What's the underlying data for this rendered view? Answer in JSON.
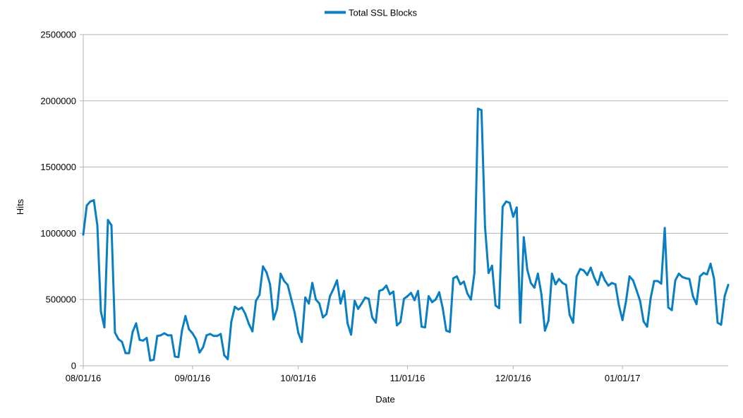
{
  "chart_data": {
    "type": "line",
    "xlabel": "Date",
    "ylabel": "Hits",
    "ylim": [
      0,
      2500000
    ],
    "y_ticks": [
      "0",
      "500000",
      "1000000",
      "1500000",
      "2000000",
      "2500000"
    ],
    "x_ticks": [
      "08/01/16",
      "09/01/16",
      "10/01/16",
      "11/01/16",
      "12/01/16",
      "01/01/17"
    ],
    "x_tick_dates": [
      "2016-08-01",
      "2016-09-01",
      "2016-10-01",
      "2016-11-01",
      "2016-12-01",
      "2017-01-01"
    ],
    "xlim": [
      "2016-08-01",
      "2017-01-31"
    ],
    "grid": "horizontal",
    "legend_position": "top-center",
    "series": [
      {
        "name": "Total SSL Blocks",
        "color": "#0a7ec2",
        "x": [
          "2016-08-01",
          "2016-08-02",
          "2016-08-03",
          "2016-08-04",
          "2016-08-05",
          "2016-08-06",
          "2016-08-07",
          "2016-08-08",
          "2016-08-09",
          "2016-08-10",
          "2016-08-11",
          "2016-08-12",
          "2016-08-13",
          "2016-08-14",
          "2016-08-15",
          "2016-08-16",
          "2016-08-17",
          "2016-08-18",
          "2016-08-19",
          "2016-08-20",
          "2016-08-21",
          "2016-08-22",
          "2016-08-23",
          "2016-08-24",
          "2016-08-25",
          "2016-08-26",
          "2016-08-27",
          "2016-08-28",
          "2016-08-29",
          "2016-08-30",
          "2016-08-31",
          "2016-09-01",
          "2016-09-02",
          "2016-09-03",
          "2016-09-04",
          "2016-09-05",
          "2016-09-06",
          "2016-09-07",
          "2016-09-08",
          "2016-09-09",
          "2016-09-10",
          "2016-09-11",
          "2016-09-12",
          "2016-09-13",
          "2016-09-14",
          "2016-09-15",
          "2016-09-16",
          "2016-09-17",
          "2016-09-18",
          "2016-09-19",
          "2016-09-20",
          "2016-09-21",
          "2016-09-22",
          "2016-09-23",
          "2016-09-24",
          "2016-09-25",
          "2016-09-26",
          "2016-09-27",
          "2016-09-28",
          "2016-09-29",
          "2016-09-30",
          "2016-10-01",
          "2016-10-02",
          "2016-10-03",
          "2016-10-04",
          "2016-10-05",
          "2016-10-06",
          "2016-10-07",
          "2016-10-08",
          "2016-10-09",
          "2016-10-10",
          "2016-10-11",
          "2016-10-12",
          "2016-10-13",
          "2016-10-14",
          "2016-10-15",
          "2016-10-16",
          "2016-10-17",
          "2016-10-18",
          "2016-10-19",
          "2016-10-20",
          "2016-10-21",
          "2016-10-22",
          "2016-10-23",
          "2016-10-24",
          "2016-10-25",
          "2016-10-26",
          "2016-10-27",
          "2016-10-28",
          "2016-10-29",
          "2016-10-30",
          "2016-10-31",
          "2016-11-01",
          "2016-11-02",
          "2016-11-03",
          "2016-11-04",
          "2016-11-05",
          "2016-11-06",
          "2016-11-07",
          "2016-11-08",
          "2016-11-09",
          "2016-11-10",
          "2016-11-11",
          "2016-11-12",
          "2016-11-13",
          "2016-11-14",
          "2016-11-15",
          "2016-11-16",
          "2016-11-17",
          "2016-11-18",
          "2016-11-19",
          "2016-11-20",
          "2016-11-21",
          "2016-11-22",
          "2016-11-23",
          "2016-11-24",
          "2016-11-25",
          "2016-11-26",
          "2016-11-27",
          "2016-11-28",
          "2016-11-29",
          "2016-11-30",
          "2016-12-01",
          "2016-12-02",
          "2016-12-03",
          "2016-12-04",
          "2016-12-05",
          "2016-12-06",
          "2016-12-07",
          "2016-12-08",
          "2016-12-09",
          "2016-12-10",
          "2016-12-11",
          "2016-12-12",
          "2016-12-13",
          "2016-12-14",
          "2016-12-15",
          "2016-12-16",
          "2016-12-17",
          "2016-12-18",
          "2016-12-19",
          "2016-12-20",
          "2016-12-21",
          "2016-12-22",
          "2016-12-23",
          "2016-12-24",
          "2016-12-25",
          "2016-12-26",
          "2016-12-27",
          "2016-12-28",
          "2016-12-29",
          "2016-12-30",
          "2016-12-31",
          "2017-01-01",
          "2017-01-02",
          "2017-01-03",
          "2017-01-04",
          "2017-01-05",
          "2017-01-06",
          "2017-01-07",
          "2017-01-08",
          "2017-01-09",
          "2017-01-10",
          "2017-01-11",
          "2017-01-12",
          "2017-01-13",
          "2017-01-14",
          "2017-01-15",
          "2017-01-16",
          "2017-01-17",
          "2017-01-18",
          "2017-01-19",
          "2017-01-20",
          "2017-01-21",
          "2017-01-22",
          "2017-01-23",
          "2017-01-24",
          "2017-01-25",
          "2017-01-26",
          "2017-01-27",
          "2017-01-28",
          "2017-01-29",
          "2017-01-30",
          "2017-01-31"
        ],
        "values": [
          990000,
          1210000,
          1240000,
          1250000,
          1060000,
          410000,
          290000,
          1100000,
          1060000,
          250000,
          200000,
          180000,
          95000,
          95000,
          255000,
          320000,
          195000,
          190000,
          210000,
          40000,
          45000,
          225000,
          230000,
          245000,
          230000,
          230000,
          70000,
          65000,
          265000,
          375000,
          275000,
          245000,
          200000,
          100000,
          140000,
          230000,
          240000,
          225000,
          225000,
          240000,
          80000,
          50000,
          330000,
          445000,
          425000,
          440000,
          390000,
          315000,
          260000,
          490000,
          535000,
          750000,
          705000,
          615000,
          350000,
          430000,
          695000,
          640000,
          610000,
          505000,
          400000,
          250000,
          180000,
          515000,
          470000,
          625000,
          500000,
          470000,
          365000,
          390000,
          525000,
          580000,
          645000,
          470000,
          565000,
          320000,
          235000,
          490000,
          430000,
          470000,
          515000,
          505000,
          365000,
          325000,
          565000,
          575000,
          605000,
          540000,
          560000,
          305000,
          330000,
          505000,
          525000,
          550000,
          495000,
          565000,
          295000,
          290000,
          525000,
          480000,
          500000,
          555000,
          435000,
          265000,
          255000,
          660000,
          675000,
          615000,
          635000,
          545000,
          500000,
          700000,
          1940000,
          1930000,
          1050000,
          700000,
          755000,
          455000,
          435000,
          1200000,
          1240000,
          1230000,
          1125000,
          1195000,
          325000,
          970000,
          725000,
          625000,
          590000,
          695000,
          540000,
          265000,
          340000,
          695000,
          615000,
          655000,
          625000,
          610000,
          385000,
          325000,
          675000,
          730000,
          720000,
          685000,
          740000,
          665000,
          610000,
          705000,
          645000,
          605000,
          625000,
          615000,
          455000,
          345000,
          485000,
          675000,
          645000,
          570000,
          490000,
          335000,
          295000,
          510000,
          640000,
          640000,
          620000,
          1040000,
          440000,
          420000,
          645000,
          695000,
          670000,
          660000,
          655000,
          525000,
          465000,
          675000,
          700000,
          690000,
          770000,
          655000,
          325000,
          310000,
          525000,
          610000
        ]
      }
    ]
  }
}
